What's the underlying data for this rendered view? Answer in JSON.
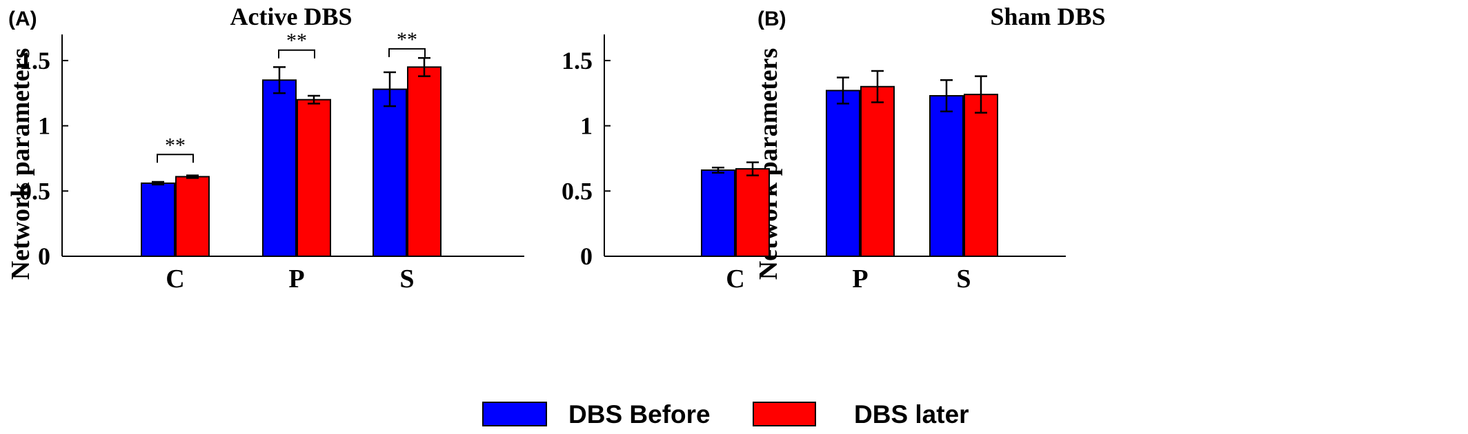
{
  "legend": {
    "entries": [
      {
        "label": "DBS Before",
        "color": "#0000ff"
      },
      {
        "label": "DBS later",
        "color": "#ff0000"
      }
    ],
    "placement": "bottom-center"
  },
  "chart_data": [
    {
      "type": "bar",
      "panel_tag": "(A)",
      "title": "Active DBS",
      "xlabel": "",
      "ylabel": "Network parameters",
      "ylim": [
        0,
        1.7
      ],
      "yticks": [
        0,
        0.5,
        1,
        1.5
      ],
      "ytick_labels": [
        "0",
        "0.5",
        "1",
        "1.5"
      ],
      "categories": [
        "C",
        "P",
        "S"
      ],
      "grid": false,
      "series": [
        {
          "name": "DBS Before",
          "color": "#0000ff",
          "values": [
            0.56,
            1.35,
            1.28
          ],
          "errors": [
            0.01,
            0.1,
            0.13
          ]
        },
        {
          "name": "DBS later",
          "color": "#ff0000",
          "values": [
            0.61,
            1.2,
            1.45
          ],
          "errors": [
            0.01,
            0.03,
            0.07
          ]
        }
      ],
      "annotations": [
        {
          "category": "C",
          "text": "**",
          "level": 0.78
        },
        {
          "category": "P",
          "text": "**",
          "level": 1.58
        },
        {
          "category": "S",
          "text": "**",
          "level": 1.59
        }
      ]
    },
    {
      "type": "bar",
      "panel_tag": "(B)",
      "title": "Sham DBS",
      "xlabel": "",
      "ylabel": "Network parameters",
      "ylim": [
        0,
        1.7
      ],
      "yticks": [
        0,
        0.5,
        1,
        1.5
      ],
      "ytick_labels": [
        "0",
        "0.5",
        "1",
        "1.5"
      ],
      "categories": [
        "C",
        "P",
        "S"
      ],
      "grid": false,
      "series": [
        {
          "name": "DBS Before",
          "color": "#0000ff",
          "values": [
            0.66,
            1.27,
            1.23
          ],
          "errors": [
            0.02,
            0.1,
            0.12
          ]
        },
        {
          "name": "DBS later",
          "color": "#ff0000",
          "values": [
            0.67,
            1.3,
            1.24
          ],
          "errors": [
            0.05,
            0.12,
            0.14
          ]
        }
      ],
      "annotations": []
    }
  ]
}
